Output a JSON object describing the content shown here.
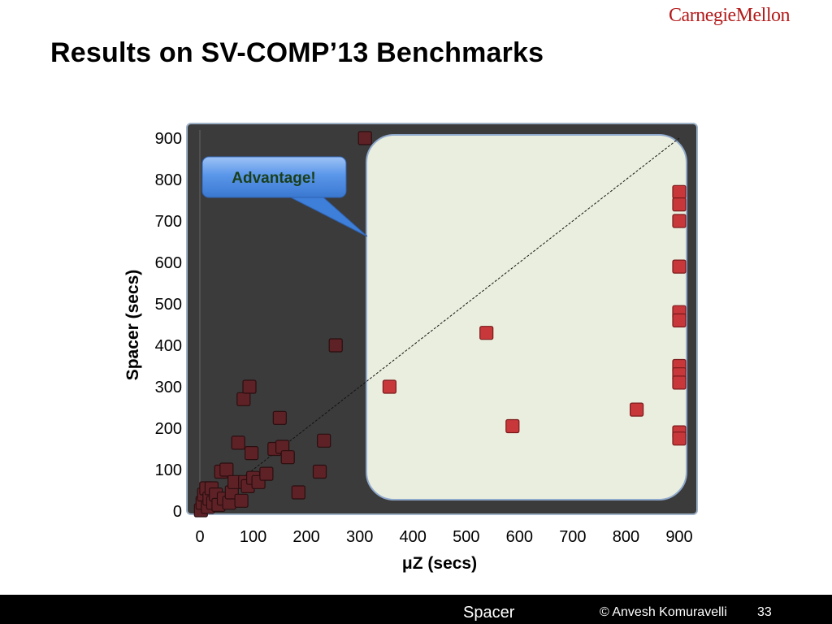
{
  "slide": {
    "logo": "CarnegieMellon",
    "title": "Results on SV-COMP’13 Benchmarks",
    "footer_center": "Spacer",
    "footer_author": "© Anvesh Komuravelli",
    "page_number": "33"
  },
  "callout": {
    "text": "Advantage!"
  },
  "colors": {
    "plot_background": "#3b3b3b",
    "advantage_region": "#eaeede",
    "marker_light": "#c8383a",
    "marker_dark": "#5e2226",
    "callout_fill": "#4f8ee6"
  },
  "chart_data": {
    "type": "scatter",
    "xlabel": "μZ (secs)",
    "ylabel": "Spacer (secs)",
    "xlim": [
      0,
      900
    ],
    "ylim": [
      0,
      900
    ],
    "xticks": [
      "0",
      "100",
      "200",
      "300",
      "400",
      "500",
      "600",
      "700",
      "800",
      "900"
    ],
    "yticks": [
      "0",
      "100",
      "200",
      "300",
      "400",
      "500",
      "600",
      "700",
      "800",
      "900"
    ],
    "diagonal": true,
    "grid": false,
    "advantage_region_x_start": 310,
    "points": [
      {
        "x": 2,
        "y": 2
      },
      {
        "x": 5,
        "y": 20
      },
      {
        "x": 8,
        "y": 40
      },
      {
        "x": 12,
        "y": 55
      },
      {
        "x": 15,
        "y": 10
      },
      {
        "x": 18,
        "y": 30
      },
      {
        "x": 22,
        "y": 55
      },
      {
        "x": 25,
        "y": 20
      },
      {
        "x": 30,
        "y": 40
      },
      {
        "x": 35,
        "y": 15
      },
      {
        "x": 40,
        "y": 95
      },
      {
        "x": 45,
        "y": 30
      },
      {
        "x": 50,
        "y": 100
      },
      {
        "x": 55,
        "y": 20
      },
      {
        "x": 60,
        "y": 45
      },
      {
        "x": 65,
        "y": 70
      },
      {
        "x": 72,
        "y": 165
      },
      {
        "x": 78,
        "y": 25
      },
      {
        "x": 82,
        "y": 270
      },
      {
        "x": 85,
        "y": 70
      },
      {
        "x": 90,
        "y": 60
      },
      {
        "x": 93,
        "y": 300
      },
      {
        "x": 97,
        "y": 140
      },
      {
        "x": 100,
        "y": 80
      },
      {
        "x": 110,
        "y": 70
      },
      {
        "x": 125,
        "y": 90
      },
      {
        "x": 140,
        "y": 150
      },
      {
        "x": 150,
        "y": 225
      },
      {
        "x": 155,
        "y": 155
      },
      {
        "x": 165,
        "y": 130
      },
      {
        "x": 185,
        "y": 45
      },
      {
        "x": 225,
        "y": 95
      },
      {
        "x": 233,
        "y": 170
      },
      {
        "x": 255,
        "y": 400
      },
      {
        "x": 310,
        "y": 900
      },
      {
        "x": 356,
        "y": 300
      },
      {
        "x": 538,
        "y": 430
      },
      {
        "x": 587,
        "y": 205
      },
      {
        "x": 820,
        "y": 245
      },
      {
        "x": 900,
        "y": 770
      },
      {
        "x": 900,
        "y": 740
      },
      {
        "x": 900,
        "y": 700
      },
      {
        "x": 900,
        "y": 590
      },
      {
        "x": 900,
        "y": 480
      },
      {
        "x": 900,
        "y": 460
      },
      {
        "x": 900,
        "y": 350
      },
      {
        "x": 900,
        "y": 330
      },
      {
        "x": 900,
        "y": 310
      },
      {
        "x": 900,
        "y": 190
      },
      {
        "x": 900,
        "y": 175
      }
    ]
  }
}
